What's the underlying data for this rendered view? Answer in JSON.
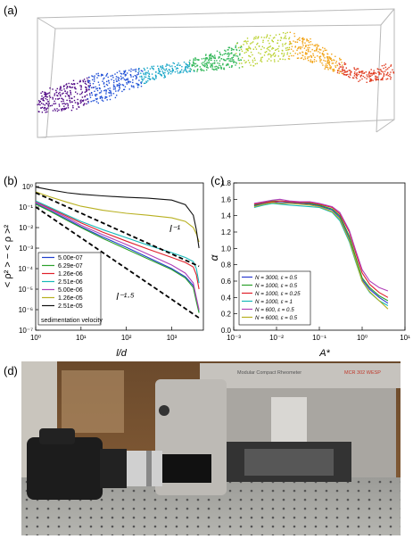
{
  "panels": {
    "a": "(a)",
    "b": "(b)",
    "c": "(c)",
    "d": "(d)"
  },
  "photo": {
    "rheometer_brand": "Modular Compact Rheometer",
    "rheometer_model": "MCR 302 WESP",
    "description_icon": "camera-on-rheometer-photo"
  },
  "chart_data": [
    {
      "type": "scatter",
      "panel": "a",
      "title": "",
      "xlabel": "",
      "ylabel": "",
      "style": "3d-box-point-cloud",
      "colormap": [
        "#4b0082",
        "#1f4fd6",
        "#18a6c7",
        "#34b85a",
        "#b8d02a",
        "#f2a51a",
        "#e03a1e"
      ]
    },
    {
      "type": "line",
      "panel": "b",
      "xscale": "log",
      "yscale": "log",
      "xlabel": "l/d",
      "ylabel": "< ρ² > − < ρ >²",
      "xlim": [
        1,
        5000
      ],
      "ylim": [
        1e-07,
        1.5
      ],
      "xticks": [
        "10⁰",
        "10¹",
        "10²",
        "10³"
      ],
      "yticks": [
        "10⁻⁷",
        "10⁻⁶",
        "10⁻⁵",
        "10⁻⁴",
        "10⁻³",
        "10⁻²",
        "10⁻¹",
        "10⁰"
      ],
      "legend_title": "sedimentation velocity",
      "legend_position": "lower-left",
      "annotations": [
        {
          "text": "l⁻¹",
          "x": 900,
          "y": 0.006
        },
        {
          "text": "l⁻¹·⁵",
          "x": 60,
          "y": 3e-06
        }
      ],
      "series": [
        {
          "name": "5.00e-07",
          "color": "#1f3fcc",
          "x": [
            1,
            2,
            5,
            10,
            30,
            100,
            300,
            1000,
            2000,
            3000,
            3500,
            4000
          ],
          "y": [
            0.15,
            0.07,
            0.025,
            0.011,
            0.0035,
            0.0011,
            0.00035,
            0.0001,
            4e-05,
            1.5e-05,
            3e-06,
            8e-07
          ]
        },
        {
          "name": "6.29e-07",
          "color": "#2ca02c",
          "x": [
            1,
            2,
            5,
            10,
            30,
            100,
            300,
            1000,
            2000,
            3000,
            3500,
            4000
          ],
          "y": [
            0.14,
            0.065,
            0.022,
            0.01,
            0.003,
            0.0009,
            0.0003,
            9e-05,
            3.5e-05,
            1.2e-05,
            2.5e-06,
            7e-07
          ]
        },
        {
          "name": "1.26e-06",
          "color": "#e0202a",
          "x": [
            1,
            2,
            5,
            10,
            30,
            100,
            300,
            1000,
            2000,
            3000,
            3500,
            4000
          ],
          "y": [
            0.18,
            0.09,
            0.035,
            0.017,
            0.006,
            0.0022,
            0.0009,
            0.00035,
            0.0002,
            0.00012,
            5e-05,
            1e-05
          ]
        },
        {
          "name": "2.51e-06",
          "color": "#17b8b8",
          "x": [
            1,
            2,
            5,
            10,
            30,
            100,
            300,
            1000,
            2000,
            3000,
            3500,
            4000
          ],
          "y": [
            0.2,
            0.1,
            0.04,
            0.02,
            0.008,
            0.0032,
            0.0014,
            0.0006,
            0.00035,
            0.00022,
            0.0001,
            2e-05
          ]
        },
        {
          "name": "5.00e-06",
          "color": "#b040b8",
          "x": [
            1,
            2,
            5,
            10,
            30,
            100,
            300,
            1000,
            2000,
            3000,
            3500,
            4000
          ],
          "y": [
            0.17,
            0.08,
            0.03,
            0.013,
            0.0045,
            0.0015,
            0.0005,
            0.00015,
            6e-05,
            2e-05,
            4e-06,
            1e-06
          ]
        },
        {
          "name": "1.26e-05",
          "color": "#b8b020",
          "x": [
            1,
            2,
            5,
            10,
            30,
            100,
            300,
            1000,
            2000,
            3000,
            3500,
            4000
          ],
          "y": [
            0.55,
            0.32,
            0.17,
            0.11,
            0.07,
            0.05,
            0.04,
            0.03,
            0.02,
            0.01,
            0.005,
            0.002
          ]
        },
        {
          "name": "2.51e-05",
          "color": "#111111",
          "x": [
            1,
            2,
            5,
            10,
            30,
            100,
            300,
            1000,
            2000,
            3000,
            3500,
            4000
          ],
          "y": [
            0.95,
            0.7,
            0.5,
            0.42,
            0.35,
            0.3,
            0.27,
            0.22,
            0.13,
            0.04,
            0.008,
            0.001
          ]
        },
        {
          "name": "",
          "color": "#000000",
          "dashed": true,
          "x": [
            1,
            4000
          ],
          "y": [
            0.5,
            0.00013
          ]
        },
        {
          "name": "",
          "color": "#000000",
          "dashed": true,
          "x": [
            1,
            4000
          ],
          "y": [
            0.1,
            4e-07
          ]
        }
      ]
    },
    {
      "type": "line",
      "panel": "c",
      "xscale": "log",
      "yscale": "linear",
      "xlabel": "A*",
      "ylabel": "α",
      "xlim": [
        0.001,
        10
      ],
      "ylim": [
        0.0,
        1.8
      ],
      "xticks": [
        "10⁻³",
        "10⁻²",
        "10⁻¹",
        "10⁰",
        "10¹"
      ],
      "yticks": [
        "0.0",
        "0.2",
        "0.4",
        "0.6",
        "0.8",
        "1.0",
        "1.2",
        "1.4",
        "1.6",
        "1.8"
      ],
      "legend_position": "lower-left",
      "series": [
        {
          "name": "N = 3000, ε = 0.5",
          "color": "#2a3ad0",
          "x": [
            0.003,
            0.005,
            0.008,
            0.012,
            0.02,
            0.035,
            0.06,
            0.1,
            0.2,
            0.3,
            0.5,
            0.7,
            1.0,
            1.5,
            2.5,
            4
          ],
          "y": [
            1.52,
            1.55,
            1.57,
            1.56,
            1.56,
            1.55,
            1.54,
            1.52,
            1.47,
            1.38,
            1.12,
            0.88,
            0.62,
            0.5,
            0.4,
            0.33
          ]
        },
        {
          "name": "N = 1000, ε = 0.5",
          "color": "#2ca02c",
          "x": [
            0.003,
            0.005,
            0.008,
            0.012,
            0.02,
            0.035,
            0.06,
            0.1,
            0.2,
            0.3,
            0.5,
            0.7,
            1.0,
            1.5,
            2.5,
            4
          ],
          "y": [
            1.53,
            1.56,
            1.58,
            1.58,
            1.57,
            1.56,
            1.55,
            1.53,
            1.48,
            1.4,
            1.15,
            0.9,
            0.64,
            0.52,
            0.42,
            0.36
          ]
        },
        {
          "name": "N = 1000, ε = 0.25",
          "color": "#e0202a",
          "x": [
            0.003,
            0.005,
            0.008,
            0.012,
            0.02,
            0.035,
            0.06,
            0.1,
            0.2,
            0.3,
            0.5,
            0.7,
            1.0,
            1.5,
            2.5,
            4
          ],
          "y": [
            1.54,
            1.56,
            1.57,
            1.58,
            1.57,
            1.56,
            1.56,
            1.54,
            1.5,
            1.42,
            1.2,
            0.95,
            0.7,
            0.56,
            0.46,
            0.4
          ]
        },
        {
          "name": "N = 1000, ε = 1",
          "color": "#17b8b8",
          "x": [
            0.003,
            0.005,
            0.008,
            0.012,
            0.02,
            0.035,
            0.06,
            0.1,
            0.2,
            0.3,
            0.5,
            0.7,
            1.0,
            1.5,
            2.5,
            4
          ],
          "y": [
            1.5,
            1.53,
            1.55,
            1.54,
            1.53,
            1.52,
            1.51,
            1.5,
            1.44,
            1.34,
            1.08,
            0.84,
            0.6,
            0.46,
            0.36,
            0.3
          ]
        },
        {
          "name": "N = 600, ε = 0.5",
          "color": "#b040b8",
          "x": [
            0.003,
            0.005,
            0.008,
            0.012,
            0.02,
            0.035,
            0.06,
            0.1,
            0.2,
            0.3,
            0.5,
            0.7,
            1.0,
            1.5,
            2.5,
            4
          ],
          "y": [
            1.55,
            1.57,
            1.59,
            1.6,
            1.58,
            1.57,
            1.57,
            1.55,
            1.51,
            1.44,
            1.22,
            0.98,
            0.74,
            0.6,
            0.52,
            0.48
          ]
        },
        {
          "name": "N = 6000, ε = 0.5",
          "color": "#b8b020",
          "x": [
            0.003,
            0.005,
            0.008,
            0.012,
            0.02,
            0.035,
            0.06,
            0.1,
            0.2,
            0.3,
            0.5,
            0.7,
            1.0,
            1.5,
            2.5,
            4
          ],
          "y": [
            1.51,
            1.54,
            1.56,
            1.55,
            1.55,
            1.54,
            1.53,
            1.51,
            1.45,
            1.36,
            1.1,
            0.86,
            0.6,
            0.47,
            0.36,
            0.26
          ]
        }
      ]
    }
  ]
}
